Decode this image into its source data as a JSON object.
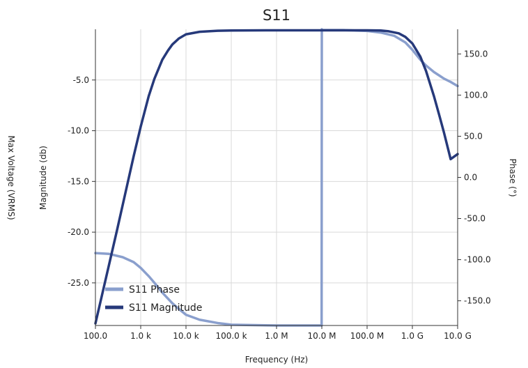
{
  "chart_data": {
    "type": "line",
    "title": "S11",
    "xlabel": "Frequency (Hz)",
    "ylabel_left": "Magnitude (db)",
    "ylabel_right": "Phase (°)",
    "ylabel_outer": "Max Voltage (VRMS)",
    "x_scale": "log",
    "xlim": [
      100,
      10000000000
    ],
    "ylim_left": [
      -29.2,
      0.0
    ],
    "ylim_right": [
      -180,
      180
    ],
    "x_ticks": [
      {
        "value": 100,
        "label": "100.0"
      },
      {
        "value": 1000,
        "label": "1.0 k"
      },
      {
        "value": 10000,
        "label": "10.0 k"
      },
      {
        "value": 100000,
        "label": "100.0 k"
      },
      {
        "value": 1000000,
        "label": "1.0 M"
      },
      {
        "value": 10000000,
        "label": "10.0 M"
      },
      {
        "value": 100000000,
        "label": "100.0 M"
      },
      {
        "value": 1000000000,
        "label": "1.0 G"
      },
      {
        "value": 10000000000,
        "label": "10.0 G"
      }
    ],
    "y_ticks_left": [
      {
        "value": -5,
        "label": "-5.0"
      },
      {
        "value": -10,
        "label": "-10.0"
      },
      {
        "value": -15,
        "label": "-15.0"
      },
      {
        "value": -20,
        "label": "-20.0"
      },
      {
        "value": -25,
        "label": "-25.0"
      }
    ],
    "y_ticks_right": [
      {
        "value": 150,
        "label": "150.0"
      },
      {
        "value": 100,
        "label": "100.0"
      },
      {
        "value": 50,
        "label": "50.0"
      },
      {
        "value": 0,
        "label": "0.0"
      },
      {
        "value": -50,
        "label": "-50.0"
      },
      {
        "value": -100,
        "label": "-100.0"
      },
      {
        "value": -150,
        "label": "-150.0"
      }
    ],
    "grid": true,
    "legend_position": "bottom-left",
    "series": [
      {
        "name": "S11 Phase",
        "axis": "right",
        "color": "#8a9fcd",
        "x": [
          100,
          200,
          400,
          700,
          1000,
          1500,
          2000,
          3000,
          5000,
          7000,
          10000,
          20000,
          50000,
          100000,
          1000000,
          9900000,
          10000000,
          10100000,
          30000000,
          100000000,
          200000000,
          400000000,
          700000000,
          1000000000,
          1500000000,
          2000000000,
          3000000000,
          5000000000,
          7000000000,
          10000000000
        ],
        "values": [
          -92,
          -93,
          -97,
          -103,
          -110,
          -120,
          -128,
          -140,
          -153,
          -160,
          -167,
          -173,
          -177,
          -179,
          -180,
          -180,
          180,
          179,
          179,
          178,
          176,
          172,
          164,
          155,
          143,
          136,
          128,
          120,
          116,
          111
        ]
      },
      {
        "name": "S11 Magnitude",
        "axis": "left",
        "color": "#26397a",
        "x": [
          100,
          200,
          300,
          500,
          700,
          1000,
          1500,
          2000,
          3000,
          4000,
          5000,
          7000,
          10000,
          20000,
          50000,
          100000,
          1000000,
          10000000,
          100000000,
          200000000,
          300000000,
          500000000,
          700000000,
          1000000000,
          1500000000,
          2000000000,
          3000000000,
          4000000000,
          5000000000,
          7000000000,
          10000000000
        ],
        "values": [
          -29.0,
          -23.2,
          -19.8,
          -15.4,
          -12.5,
          -9.6,
          -6.6,
          -4.9,
          -3.0,
          -2.1,
          -1.5,
          -0.9,
          -0.5,
          -0.25,
          -0.15,
          -0.12,
          -0.1,
          -0.1,
          -0.1,
          -0.12,
          -0.2,
          -0.4,
          -0.75,
          -1.4,
          -2.7,
          -4.1,
          -6.6,
          -8.6,
          -10.2,
          -12.8,
          -12.3
        ]
      }
    ]
  }
}
